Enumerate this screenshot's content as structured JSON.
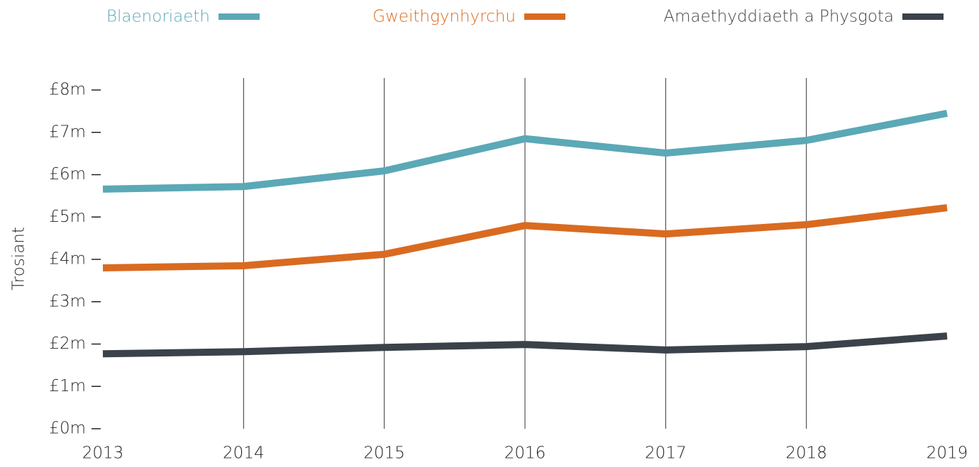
{
  "chart_data": {
    "type": "line",
    "y_label": "Trosiant",
    "x": [
      2013,
      2014,
      2015,
      2016,
      2017,
      2018,
      2019
    ],
    "xlim": [
      2013,
      2019
    ],
    "xticks": [
      2013,
      2014,
      2015,
      2016,
      2017,
      2018,
      2019
    ],
    "ylim": [
      0,
      8
    ],
    "yticks": [
      {
        "value": 0,
        "label": "£0m"
      },
      {
        "value": 1,
        "label": "£1m"
      },
      {
        "value": 2,
        "label": "£2m"
      },
      {
        "value": 3,
        "label": "£3m"
      },
      {
        "value": 4,
        "label": "£4m"
      },
      {
        "value": 5,
        "label": "£5m"
      },
      {
        "value": 6,
        "label": "£6m"
      },
      {
        "value": 7,
        "label": "£7m"
      },
      {
        "value": 8,
        "label": "£8m"
      }
    ],
    "grid": true,
    "legend": "top",
    "series": [
      {
        "name": "Blaenoriaeth",
        "color": "#5ba8b6",
        "values": [
          5.66,
          5.72,
          6.09,
          6.85,
          6.51,
          6.81,
          7.45
        ]
      },
      {
        "name": "Gweithgynhyrchu",
        "color": "#d96b21",
        "values": [
          3.8,
          3.85,
          4.12,
          4.8,
          4.6,
          4.82,
          5.22
        ]
      },
      {
        "name": "Amaethyddiaeth a Physgota",
        "color": "#3b4249",
        "values": [
          1.77,
          1.82,
          1.92,
          1.99,
          1.86,
          1.94,
          2.19
        ]
      }
    ]
  }
}
